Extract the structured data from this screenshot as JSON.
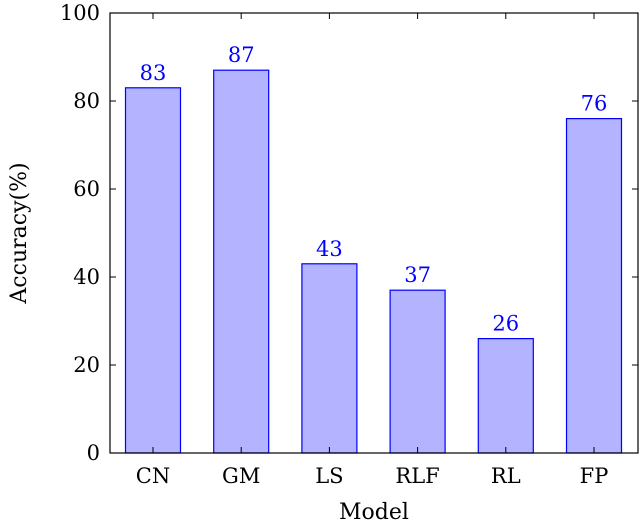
{
  "chart_data": {
    "type": "bar",
    "title": "",
    "xlabel": "Model",
    "ylabel": "Accuracy(%)",
    "categories": [
      "CN",
      "GM",
      "LS",
      "RLF",
      "RL",
      "FP"
    ],
    "values": [
      83,
      87,
      43,
      37,
      26,
      76
    ],
    "data_labels": [
      "83",
      "87",
      "43",
      "37",
      "26",
      "76"
    ],
    "ylim": [
      0,
      100
    ],
    "yticks": [
      0,
      20,
      40,
      60,
      80,
      100
    ],
    "ytick_labels": [
      "0",
      "20",
      "40",
      "60",
      "80",
      "100"
    ],
    "grid": false,
    "legend": "none",
    "colors": {
      "bar_fill": "#b3b3ff",
      "bar_stroke": "#0000ff",
      "data_label": "#0000ff",
      "axis": "#000000"
    }
  }
}
